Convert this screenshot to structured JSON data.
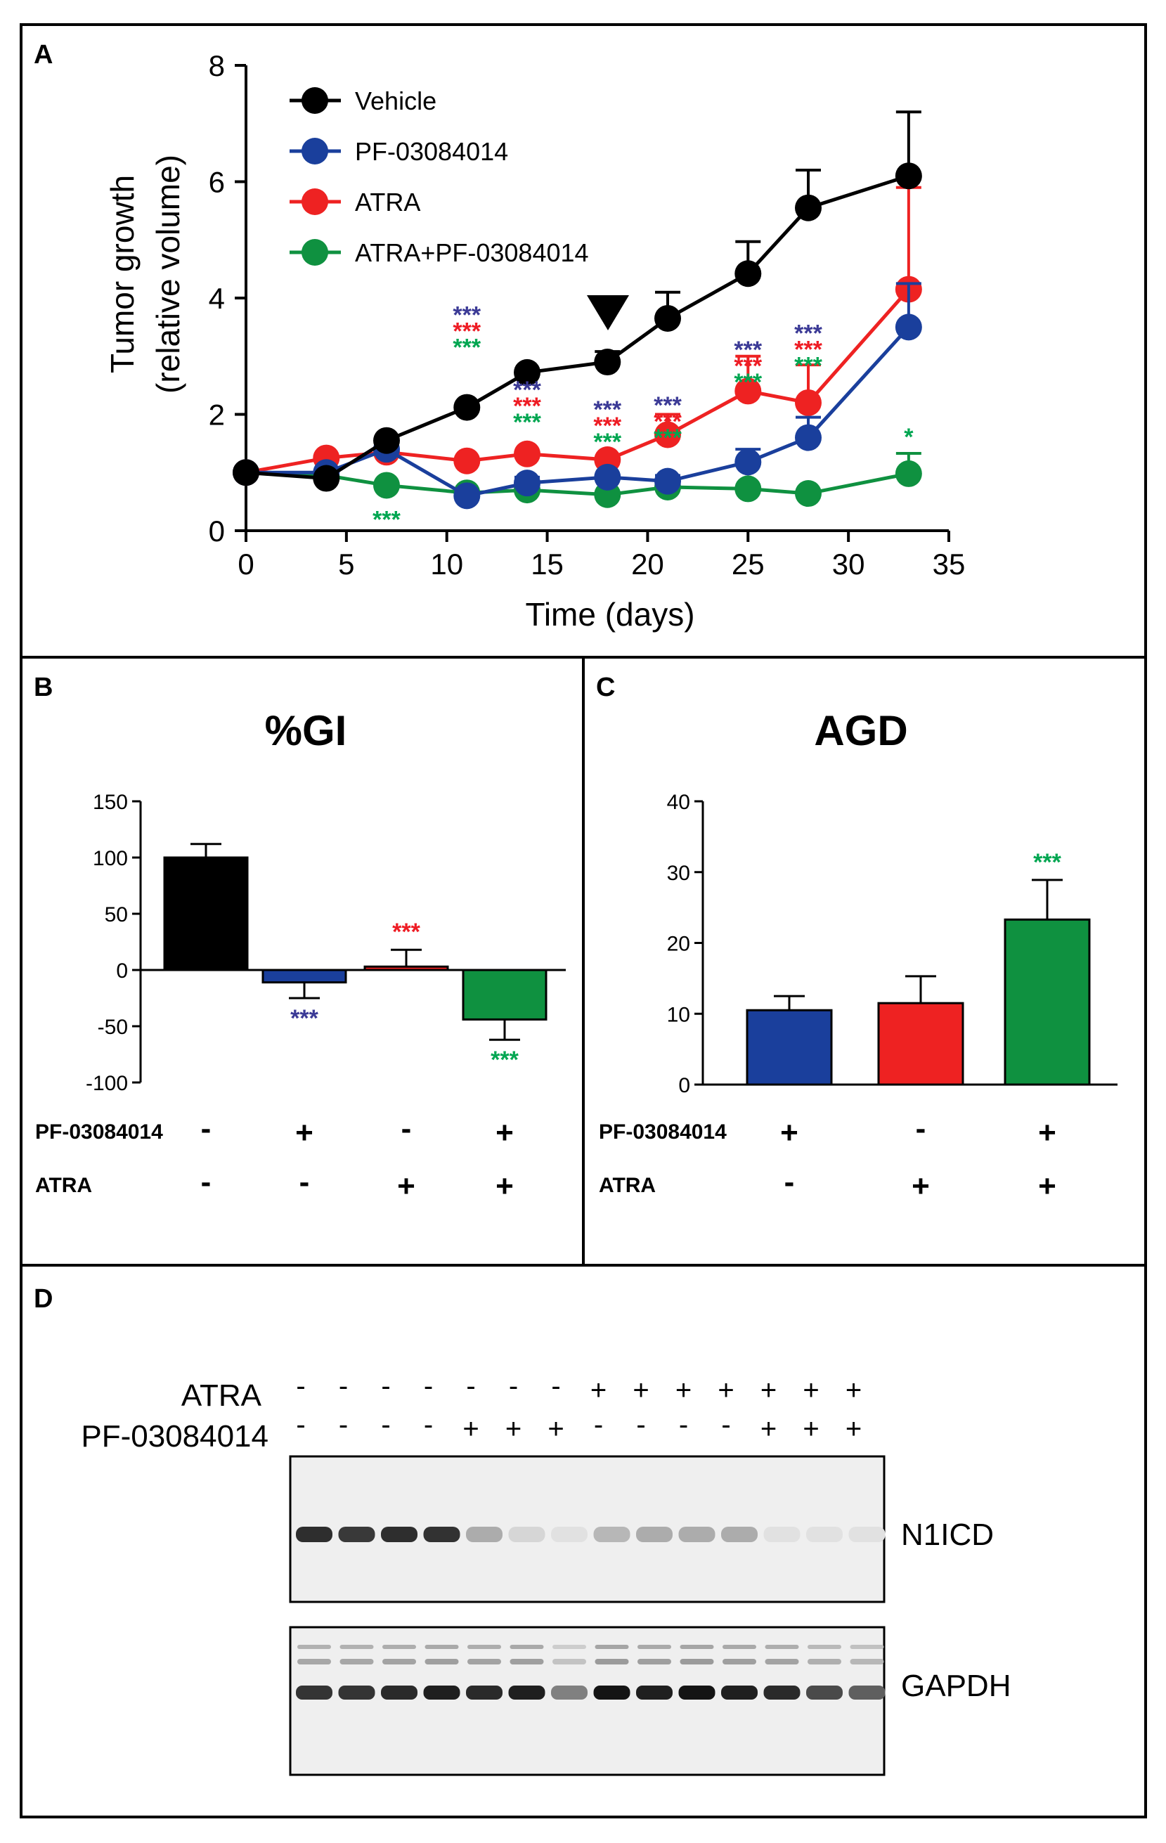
{
  "panels": {
    "A": "A",
    "B": "B",
    "C": "C",
    "D": "D"
  },
  "colors": {
    "vehicle": "#000000",
    "pf": "#1a3f9c",
    "atra": "#ee2222",
    "combo": "#0f9140",
    "star_blue": "#3b3a96",
    "star_red": "#ee1c24",
    "star_green": "#00a651"
  },
  "chart_data": [
    {
      "id": "A",
      "type": "line",
      "title": "",
      "xlabel": "Time (days)",
      "ylabel": [
        "Tumor growth",
        "(relative volume)"
      ],
      "xlim": [
        0,
        35
      ],
      "ylim": [
        0,
        8
      ],
      "xticks": [
        0,
        5,
        10,
        15,
        20,
        25,
        30,
        35
      ],
      "yticks": [
        0,
        2,
        4,
        6,
        8
      ],
      "x": [
        0,
        4,
        7,
        11,
        14,
        18,
        21,
        25,
        28,
        33
      ],
      "series": [
        {
          "name": "Vehicle",
          "color": "#000000",
          "values": [
            1.0,
            0.9,
            1.55,
            2.12,
            2.72,
            2.9,
            3.65,
            4.42,
            5.55,
            6.1
          ],
          "err": [
            0,
            0,
            0,
            0,
            0,
            0.18,
            0.45,
            0.55,
            0.65,
            1.1
          ]
        },
        {
          "name": "PF-03084014",
          "color": "#1a3f9c",
          "values": [
            1.0,
            1.0,
            1.4,
            0.6,
            0.82,
            0.92,
            0.85,
            1.18,
            1.6,
            3.5
          ],
          "err": [
            0,
            0,
            0,
            0,
            0.1,
            0,
            0.1,
            0.22,
            0.35,
            0.75
          ]
        },
        {
          "name": "ATRA",
          "color": "#ee2222",
          "values": [
            1.0,
            1.25,
            1.35,
            1.2,
            1.32,
            1.22,
            1.65,
            2.4,
            2.2,
            4.15
          ],
          "err": [
            0,
            0,
            0,
            0,
            0,
            0,
            0.35,
            0.6,
            0.65,
            1.75
          ]
        },
        {
          "name": "ATRA+PF-03084014",
          "color": "#0f9140",
          "values": [
            1.0,
            0.95,
            0.78,
            0.65,
            0.7,
            0.62,
            0.75,
            0.72,
            0.64,
            0.98
          ],
          "err": [
            0,
            0,
            0,
            0,
            0,
            0,
            0,
            0,
            0,
            0.35
          ]
        }
      ],
      "significance": [
        {
          "x": 11,
          "marks": [
            "***",
            "***",
            "***"
          ]
        },
        {
          "x": 14,
          "marks": [
            "***",
            "***",
            "***"
          ]
        },
        {
          "x": 18,
          "marks": [
            "***",
            "***",
            "***"
          ]
        },
        {
          "x": 21,
          "marks": [
            "***",
            "***",
            "***"
          ]
        },
        {
          "x": 25,
          "marks": [
            "***",
            "***",
            "***"
          ]
        },
        {
          "x": 28,
          "marks": [
            "***",
            "***",
            "***"
          ]
        },
        {
          "x": 7,
          "marks": [
            "***"
          ],
          "group": "green"
        },
        {
          "x": 33,
          "marks": [
            "*"
          ],
          "group": "green"
        }
      ],
      "arrow_at_day": 18
    },
    {
      "id": "B",
      "type": "bar",
      "title": "%GI",
      "ylim": [
        -100,
        150
      ],
      "yticks": [
        150,
        100,
        50,
        0,
        -50,
        -100
      ],
      "categories": [
        "Vehicle",
        "PF-03084014",
        "ATRA",
        "ATRA+PF-03084014"
      ],
      "values": [
        100,
        -11,
        3,
        -44
      ],
      "err": [
        12,
        14,
        15,
        18
      ],
      "colors": [
        "#000000",
        "#1a3f9c",
        "#ee2222",
        "#0f9140"
      ],
      "stars": [
        "",
        "***",
        "***",
        "***"
      ],
      "star_colors": [
        "",
        "#3b3a96",
        "#ee1c24",
        "#00a651"
      ],
      "rows": [
        {
          "label": "PF-03084014",
          "values": [
            "-",
            "+",
            "-",
            "+"
          ]
        },
        {
          "label": "ATRA",
          "values": [
            "-",
            "-",
            "+",
            "+"
          ]
        }
      ]
    },
    {
      "id": "C",
      "type": "bar",
      "title": "AGD",
      "ylim": [
        0,
        40
      ],
      "yticks": [
        40,
        30,
        20,
        10,
        0
      ],
      "categories": [
        "PF-03084014",
        "ATRA",
        "ATRA+PF-03084014"
      ],
      "values": [
        10.5,
        11.5,
        23.3
      ],
      "err": [
        2,
        3.8,
        5.6
      ],
      "colors": [
        "#1a3f9c",
        "#ee2222",
        "#0f9140"
      ],
      "stars": [
        "",
        "",
        "***"
      ],
      "star_colors": [
        "",
        "",
        "#00a651"
      ],
      "rows": [
        {
          "label": "PF-03084014",
          "values": [
            "+",
            "-",
            "+"
          ]
        },
        {
          "label": "ATRA",
          "values": [
            "-",
            "+",
            "+"
          ]
        }
      ]
    }
  ],
  "blot": {
    "row_labels": [
      "ATRA",
      "PF-03084014"
    ],
    "atra": [
      "-",
      "-",
      "-",
      "-",
      "-",
      "-",
      "-",
      "+",
      "+",
      "+",
      "+",
      "+",
      "+",
      "+"
    ],
    "pf": [
      "-",
      "-",
      "-",
      "-",
      "+",
      "+",
      "+",
      "-",
      "-",
      "-",
      "-",
      "+",
      "+",
      "+"
    ],
    "bands": [
      "N1ICD",
      "GAPDH"
    ],
    "n1icd_intensity": [
      0.9,
      0.85,
      0.9,
      0.88,
      0.3,
      0.1,
      0.05,
      0.25,
      0.3,
      0.3,
      0.3,
      0.05,
      0.05,
      0.05
    ],
    "gapdh_intensity": [
      0.85,
      0.85,
      0.9,
      0.95,
      0.9,
      0.95,
      0.5,
      1.0,
      0.95,
      1.0,
      0.95,
      0.9,
      0.75,
      0.65
    ]
  }
}
